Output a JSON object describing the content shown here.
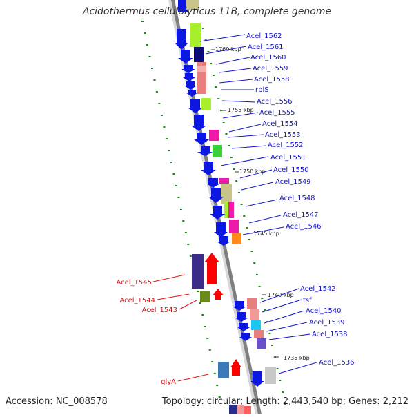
{
  "title": "Acidothermus cellulolyticus 11B, complete genome",
  "accession": "Accession: NC_008578",
  "topology": "Topology: circular; Length: 2,443,540 bp; Genes: 2,212",
  "colors": {
    "forward_label": "#1414c8",
    "reverse_label": "#e01010",
    "axis": "#808080",
    "forward_arrow": "#0a14e6",
    "reverse_arrow": "#ff0000",
    "tick": "#1a8a1a"
  },
  "kbp_labels": [
    "1760 kbp",
    "1755 kbp",
    "1750 kbp",
    "1745 kbp",
    "1740 kbp",
    "1735 kbp"
  ],
  "forward_genes": [
    "Acel_1562",
    "Acel_1561",
    "Acel_1560",
    "Acel_1559",
    "Acel_1558",
    "rplS",
    "Acel_1556",
    "Acel_1555",
    "Acel_1554",
    "Acel_1553",
    "Acel_1552",
    "Acel_1551",
    "Acel_1550",
    "Acel_1549",
    "Acel_1548",
    "Acel_1547",
    "Acel_1546",
    "Acel_1542",
    "tsf",
    "Acel_1540",
    "Acel_1539",
    "Acel_1538",
    "Acel_1536"
  ],
  "reverse_genes": [
    "Acel_1545",
    "Acel_1544",
    "Acel_1543",
    "glyA"
  ]
}
